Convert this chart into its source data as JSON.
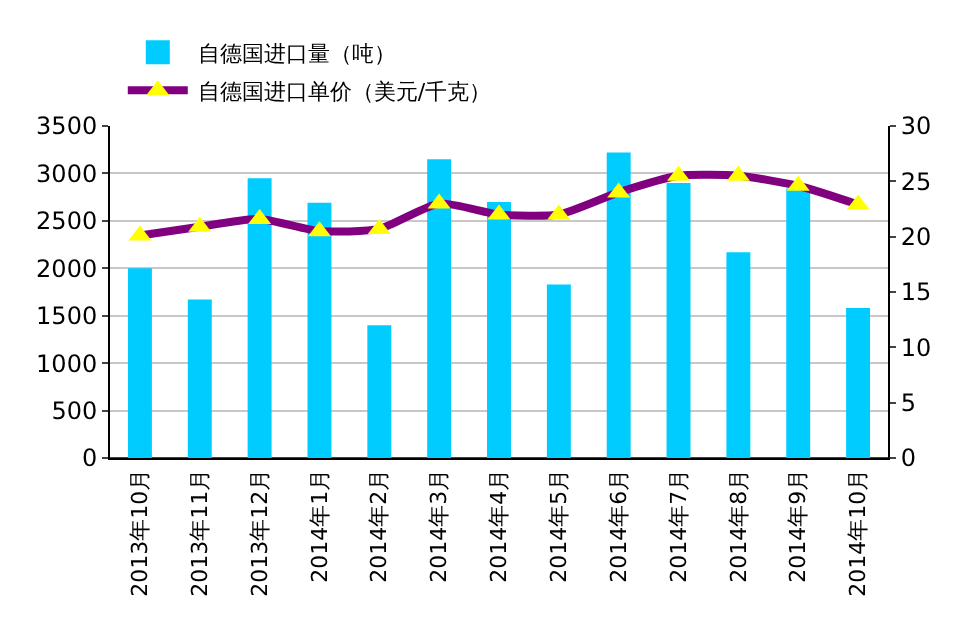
{
  "chart_data": {
    "type": "bar",
    "categories": [
      "2013年10月",
      "2013年11月",
      "2013年12月",
      "2014年1月",
      "2014年2月",
      "2014年3月",
      "2014年4月",
      "2014年5月",
      "2014年6月",
      "2014年7月",
      "2014年8月",
      "2014年9月",
      "2014年10月"
    ],
    "series": [
      {
        "name": "自德国进口量（吨）",
        "color": "#00ccff",
        "values": [
          2000,
          1670,
          2950,
          2690,
          1400,
          3150,
          2700,
          1830,
          3220,
          2900,
          2170,
          2840,
          1580
        ]
      },
      {
        "name": "自德国进口单价（美元/千克）",
        "type": "line",
        "axis": "y2",
        "color": "#800080",
        "marker": "triangle",
        "values": [
          20.1,
          20.9,
          21.6,
          20.5,
          20.7,
          23.0,
          22.0,
          22.0,
          24.0,
          25.5,
          25.5,
          24.6,
          22.9
        ]
      }
    ],
    "ylim": [
      0,
      3500
    ],
    "yticks": [
      0,
      500,
      1000,
      1500,
      2000,
      2500,
      3000,
      3500
    ],
    "y2lim": [
      0,
      30
    ],
    "y2ticks": [
      0,
      5,
      10,
      15,
      20,
      25,
      30
    ],
    "grid": "y",
    "legend": "top left"
  }
}
